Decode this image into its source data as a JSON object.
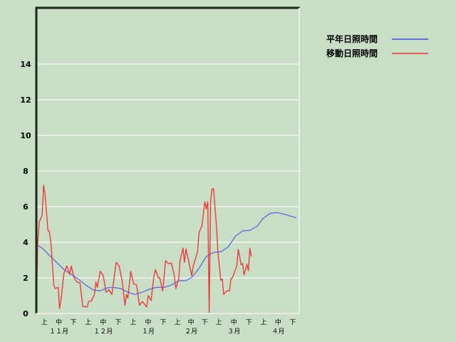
{
  "chart_data": {
    "type": "line",
    "ylim": [
      0,
      17.2
    ],
    "y_ticks": [
      "0",
      "2",
      "4",
      "6",
      "8",
      "10",
      "12",
      "14"
    ],
    "grid": "horizontal",
    "legend_position": "top-right",
    "x_range": [
      "11-01",
      "04-30"
    ],
    "dekad_labels": [
      "上",
      "中",
      "下"
    ],
    "months": [
      {
        "label": "１１月",
        "days": 30
      },
      {
        "label": "１２月",
        "days": 31
      },
      {
        "label": "１月",
        "days": 31
      },
      {
        "label": "２月",
        "days": 28
      },
      {
        "label": "３月",
        "days": 31
      },
      {
        "label": "４月",
        "days": 30
      }
    ],
    "series": [
      {
        "name": "平年日照時間",
        "color": "#6470e0",
        "points": [
          [
            "11-01",
            3.87
          ],
          [
            "11-05",
            3.67
          ],
          [
            "11-10",
            3.27
          ],
          [
            "11-15",
            2.87
          ],
          [
            "11-20",
            2.47
          ],
          [
            "11-25",
            2.2
          ],
          [
            "11-30",
            1.93
          ],
          [
            "12-05",
            1.6
          ],
          [
            "12-10",
            1.33
          ],
          [
            "12-15",
            1.27
          ],
          [
            "12-20",
            1.44
          ],
          [
            "12-24",
            1.47
          ],
          [
            "12-29",
            1.4
          ],
          [
            "01-03",
            1.2
          ],
          [
            "01-08",
            1.07
          ],
          [
            "01-13",
            1.2
          ],
          [
            "01-18",
            1.37
          ],
          [
            "01-23",
            1.47
          ],
          [
            "01-28",
            1.47
          ],
          [
            "02-02",
            1.6
          ],
          [
            "02-07",
            1.84
          ],
          [
            "02-12",
            1.84
          ],
          [
            "02-16",
            2.03
          ],
          [
            "02-21",
            2.53
          ],
          [
            "02-26",
            3.2
          ],
          [
            "03-03",
            3.43
          ],
          [
            "03-08",
            3.47
          ],
          [
            "03-13",
            3.73
          ],
          [
            "03-18",
            4.33
          ],
          [
            "03-23",
            4.64
          ],
          [
            "03-28",
            4.67
          ],
          [
            "04-02",
            4.9
          ],
          [
            "04-06",
            5.33
          ],
          [
            "04-11",
            5.63
          ],
          [
            "04-16",
            5.67
          ],
          [
            "04-21",
            5.57
          ],
          [
            "04-26",
            5.44
          ],
          [
            "04-29",
            5.37
          ]
        ]
      },
      {
        "name": "移動日照時間",
        "color": "#f03a3a",
        "points": [
          [
            "11-01",
            0
          ],
          [
            "11-02",
            4.0
          ],
          [
            "11-03",
            5.13
          ],
          [
            "11-04",
            5.33
          ],
          [
            "11-05",
            5.53
          ],
          [
            "11-06",
            7.2
          ],
          [
            "11-07",
            6.67
          ],
          [
            "11-09",
            4.67
          ],
          [
            "11-10",
            4.6
          ],
          [
            "11-11",
            4.0
          ],
          [
            "11-13",
            1.6
          ],
          [
            "11-14",
            1.4
          ],
          [
            "11-16",
            1.47
          ],
          [
            "11-17",
            0.27
          ],
          [
            "11-18",
            0.8
          ],
          [
            "11-20",
            2.27
          ],
          [
            "11-22",
            2.67
          ],
          [
            "11-24",
            2.2
          ],
          [
            "11-25",
            2.67
          ],
          [
            "11-27",
            2.0
          ],
          [
            "11-29",
            1.76
          ],
          [
            "12-01",
            1.73
          ],
          [
            "12-03",
            0.4
          ],
          [
            "12-06",
            0.37
          ],
          [
            "12-07",
            0.67
          ],
          [
            "12-09",
            0.73
          ],
          [
            "12-11",
            1.07
          ],
          [
            "12-12",
            1.76
          ],
          [
            "12-13",
            1.47
          ],
          [
            "12-15",
            2.37
          ],
          [
            "12-17",
            2.13
          ],
          [
            "12-19",
            1.2
          ],
          [
            "12-21",
            1.33
          ],
          [
            "12-23",
            1.07
          ],
          [
            "12-26",
            2.87
          ],
          [
            "12-28",
            2.67
          ],
          [
            "12-30",
            1.87
          ],
          [
            "01-01",
            0.47
          ],
          [
            "01-02",
            1.07
          ],
          [
            "01-03",
            0.87
          ],
          [
            "01-05",
            2.37
          ],
          [
            "01-07",
            1.67
          ],
          [
            "01-09",
            1.6
          ],
          [
            "01-11",
            0.47
          ],
          [
            "01-13",
            0.67
          ],
          [
            "01-16",
            0.37
          ],
          [
            "01-17",
            1.0
          ],
          [
            "01-19",
            0.73
          ],
          [
            "01-21",
            2.13
          ],
          [
            "01-22",
            2.47
          ],
          [
            "01-24",
            2.0
          ],
          [
            "01-25",
            2.0
          ],
          [
            "01-27",
            1.27
          ],
          [
            "01-29",
            2.96
          ],
          [
            "01-31",
            2.8
          ],
          [
            "02-02",
            2.83
          ],
          [
            "02-04",
            2.13
          ],
          [
            "02-05",
            1.4
          ],
          [
            "02-07",
            1.93
          ],
          [
            "02-08",
            3.0
          ],
          [
            "02-10",
            3.67
          ],
          [
            "02-11",
            2.87
          ],
          [
            "02-12",
            3.63
          ],
          [
            "02-13",
            3.27
          ],
          [
            "02-16",
            2.13
          ],
          [
            "02-17",
            2.67
          ],
          [
            "02-20",
            3.47
          ],
          [
            "02-21",
            4.53
          ],
          [
            "02-23",
            4.93
          ],
          [
            "02-25",
            6.27
          ],
          [
            "02-26",
            5.87
          ],
          [
            "02-27",
            6.27
          ],
          [
            "02-28",
            0
          ],
          [
            "03-01",
            6.33
          ],
          [
            "03-02",
            7.0
          ],
          [
            "03-03",
            7.0
          ],
          [
            "03-05",
            4.93
          ],
          [
            "03-06",
            3.47
          ],
          [
            "03-08",
            1.87
          ],
          [
            "03-09",
            1.93
          ],
          [
            "03-10",
            1.07
          ],
          [
            "03-12",
            1.27
          ],
          [
            "03-14",
            1.27
          ],
          [
            "03-15",
            1.97
          ],
          [
            "03-16",
            2.0
          ],
          [
            "03-19",
            2.67
          ],
          [
            "03-20",
            3.6
          ],
          [
            "03-22",
            2.73
          ],
          [
            "03-23",
            2.8
          ],
          [
            "03-24",
            2.17
          ],
          [
            "03-26",
            2.76
          ],
          [
            "03-27",
            2.4
          ],
          [
            "03-28",
            3.67
          ],
          [
            "03-29",
            3.2
          ]
        ]
      }
    ]
  }
}
